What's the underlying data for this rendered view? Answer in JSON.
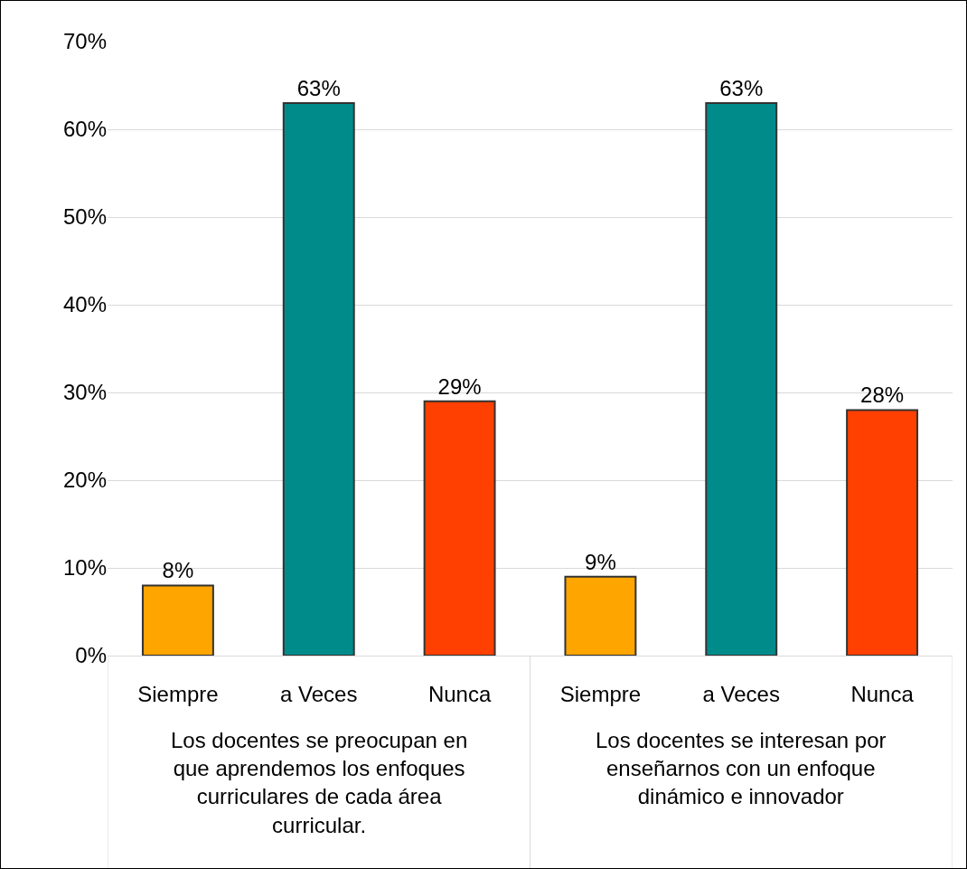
{
  "chart_data": {
    "type": "bar",
    "categories": [
      "Siempre",
      "a Veces",
      "Nunca",
      "Siempre",
      "a Veces",
      "Nunca"
    ],
    "values": [
      8,
      63,
      29,
      9,
      63,
      28
    ],
    "colors": [
      "#ffa500",
      "#008b8b",
      "#ff4000",
      "#ffa500",
      "#008b8b",
      "#ff4000"
    ],
    "value_labels": [
      "8%",
      "63%",
      "29%",
      "9%",
      "63%",
      "28%"
    ],
    "ylim": [
      0,
      70
    ],
    "yticks": [
      {
        "value": 0,
        "label": "0%"
      },
      {
        "value": 10,
        "label": "10%"
      },
      {
        "value": 20,
        "label": "20%"
      },
      {
        "value": 30,
        "label": "30%"
      },
      {
        "value": 40,
        "label": "40%"
      },
      {
        "value": 50,
        "label": "50%"
      },
      {
        "value": 60,
        "label": "60%"
      },
      {
        "value": 70,
        "label": "70%"
      }
    ],
    "grid": "y",
    "annotations": [
      "Los docentes se preocupan en que aprendemos los enfoques curriculares de cada área curricular.",
      "Los docentes se interesan por enseñarnos con un enfoque dinámico e innovador"
    ]
  }
}
